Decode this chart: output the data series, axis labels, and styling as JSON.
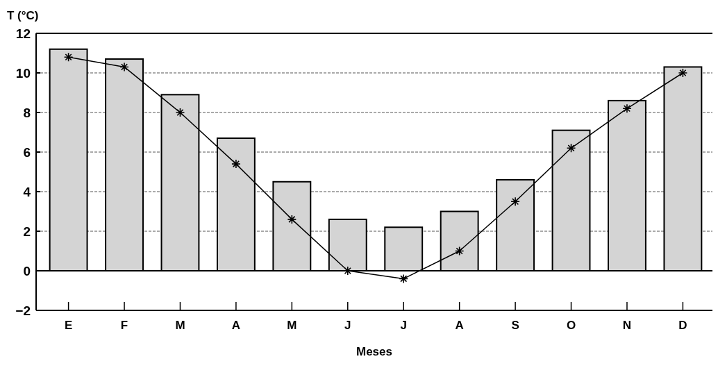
{
  "chart_data": {
    "type": "bar",
    "xlabel": "Meses",
    "ylabel": "T (°C)",
    "categories": [
      "E",
      "F",
      "M",
      "A",
      "M",
      "J",
      "J",
      "A",
      "S",
      "O",
      "N",
      "D"
    ],
    "series": [
      {
        "color": "#d4d4d4",
        "values": [
          11.2,
          10.7,
          8.9,
          6.7,
          4.5,
          2.6,
          2.2,
          3.0,
          4.6,
          7.1,
          8.6,
          10.3
        ]
      },
      {
        "type": "line",
        "color": "#000000",
        "marker": "cross",
        "line_style": "solid",
        "values": [
          10.8,
          10.3,
          8.0,
          5.4,
          2.6,
          0,
          -0.4,
          1.0,
          3.5,
          6.2,
          8.2,
          10.0
        ]
      }
    ],
    "ylim": [
      -2,
      12
    ],
    "yticks": [
      -2,
      0,
      2,
      4,
      6,
      8,
      10,
      12
    ],
    "grid": "y",
    "ref_lines": [
      {
        "axis": "y",
        "value": 0,
        "color": "#000000",
        "line_style": "solid"
      }
    ]
  }
}
